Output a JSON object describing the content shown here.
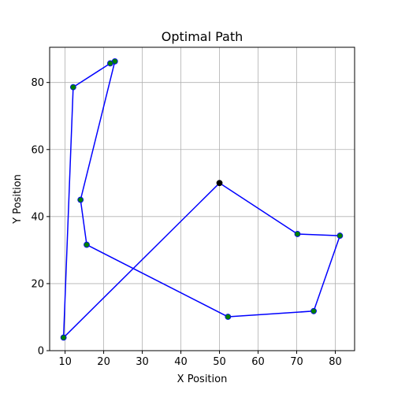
{
  "chart_data": {
    "type": "line",
    "title": "Optimal Path",
    "xlabel": "X Position",
    "ylabel": "Y Position",
    "xlim": [
      6,
      85
    ],
    "ylim": [
      0,
      90.5
    ],
    "xticks": [
      10,
      20,
      30,
      40,
      50,
      60,
      70,
      80
    ],
    "yticks": [
      0,
      20,
      40,
      60,
      80
    ],
    "grid": true,
    "series": [
      {
        "path": [
          {
            "x": 50,
            "y": 50
          },
          {
            "x": 70.2,
            "y": 34.8
          },
          {
            "x": 81.2,
            "y": 34.3
          },
          {
            "x": 74.4,
            "y": 11.8
          },
          {
            "x": 52.2,
            "y": 10.1
          },
          {
            "x": 15.6,
            "y": 31.6
          },
          {
            "x": 14.0,
            "y": 45.0
          },
          {
            "x": 22.9,
            "y": 86.3
          },
          {
            "x": 21.7,
            "y": 85.7
          },
          {
            "x": 12.1,
            "y": 78.6
          },
          {
            "x": 9.6,
            "y": 3.9
          },
          {
            "x": 50,
            "y": 50
          }
        ]
      }
    ],
    "start_point": {
      "x": 50,
      "y": 50
    },
    "colors": {
      "line": "#0000ff",
      "markers": "#008000",
      "start_marker": "#000000",
      "grid": "#b0b0b0"
    }
  }
}
